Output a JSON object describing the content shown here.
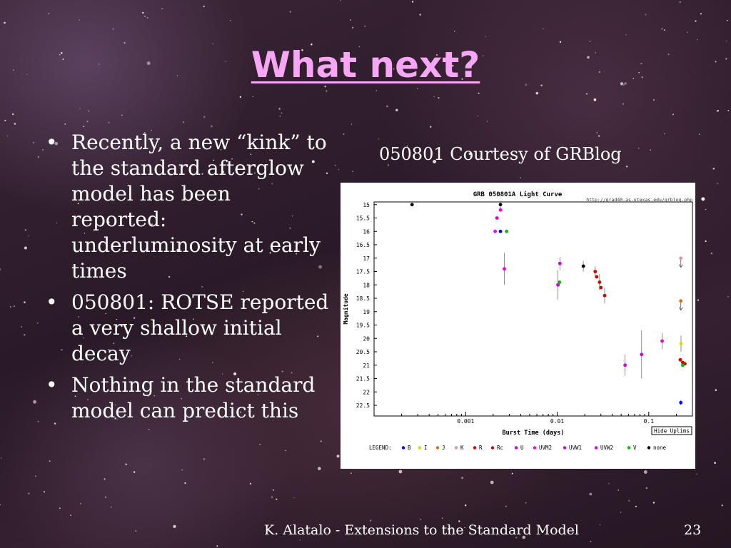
{
  "slide": {
    "title": "What next?",
    "bullets": [
      "Recently, a new “kink” to the standard afterglow model has been reported: underluminosity at early times",
      "050801: ROTSE reported a very shallow initial decay",
      "Nothing in the standard model can predict this"
    ],
    "caption": "050801 Courtesy of GRBlog",
    "footer": "K. Alatalo - Extensions to the Standard Model",
    "page_number": "23"
  },
  "chart_data": {
    "type": "scatter",
    "title": "GRB 050801A Light Curve",
    "source_url": "http://grad40.as.utexas.edu/grblog.php",
    "xlabel": "Burst Time (days)",
    "ylabel": "Magnitude",
    "xscale": "log",
    "xlim": [
      0.0001,
      0.3
    ],
    "ylim": [
      15,
      22.5
    ],
    "y_inverted": true,
    "x_ticks": [
      {
        "value": 0.001,
        "label": "0.001"
      },
      {
        "value": 0.01,
        "label": "0.01"
      },
      {
        "value": 0.1,
        "label": "0.1"
      }
    ],
    "y_ticks": [
      "15",
      "15.5",
      "16",
      "16.5",
      "17",
      "17.5",
      "18",
      "18.5",
      "19",
      "19.5",
      "20",
      "20.5",
      "21",
      "21.5",
      "22",
      "22.5"
    ],
    "button_label": "Hide Uplims",
    "legend_title": "LEGEND:",
    "series": [
      {
        "name": "B",
        "color": "#0000ff",
        "marker": "star",
        "points": [
          {
            "x": 0.0024,
            "y": 16.0
          },
          {
            "x": 0.0102,
            "y": 18.0
          },
          {
            "x": 0.224,
            "y": 22.4
          }
        ]
      },
      {
        "name": "I",
        "color": "#d8d800",
        "marker": "star",
        "points": [
          {
            "x": 0.225,
            "y": 20.2
          }
        ]
      },
      {
        "name": "J",
        "color": "#c07820",
        "marker": "star",
        "points": [
          {
            "x": 0.224,
            "y": 18.6,
            "upper_limit": true
          }
        ]
      },
      {
        "name": "K",
        "color": "#d89898",
        "marker": "star",
        "points": [
          {
            "x": 0.224,
            "y": 17.0,
            "upper_limit": true
          }
        ]
      },
      {
        "name": "R",
        "color": "#cc0000",
        "marker": "star",
        "points": [
          {
            "x": 0.026,
            "y": 17.5
          },
          {
            "x": 0.027,
            "y": 17.7
          },
          {
            "x": 0.029,
            "y": 17.9
          },
          {
            "x": 0.03,
            "y": 18.1
          },
          {
            "x": 0.033,
            "y": 18.4
          },
          {
            "x": 0.221,
            "y": 20.8
          },
          {
            "x": 0.235,
            "y": 20.9
          },
          {
            "x": 0.248,
            "y": 20.95
          }
        ]
      },
      {
        "name": "Rc",
        "color": "#cc0000",
        "marker": "star",
        "points": []
      },
      {
        "name": "U",
        "color": "#d000d0",
        "marker": "star",
        "points": [
          {
            "x": 0.0102,
            "y": 18.0
          }
        ]
      },
      {
        "name": "UVM2",
        "color": "#ee00ee",
        "marker": "star",
        "points": [
          {
            "x": 0.0021,
            "y": 16.0
          },
          {
            "x": 0.0024,
            "y": 15.2
          }
        ]
      },
      {
        "name": "UVW1",
        "color": "#d000d0",
        "marker": "star",
        "points": [
          {
            "x": 0.0022,
            "y": 15.5
          },
          {
            "x": 0.0107,
            "y": 17.2
          },
          {
            "x": 0.0551,
            "y": 21.0
          },
          {
            "x": 0.0835,
            "y": 20.6
          }
        ]
      },
      {
        "name": "UVW2",
        "color": "#dd00dd",
        "marker": "star",
        "points": [
          {
            "x": 0.00265,
            "y": 17.4
          },
          {
            "x": 0.14,
            "y": 20.1
          }
        ]
      },
      {
        "name": "V",
        "color": "#00bb00",
        "marker": "star",
        "points": [
          {
            "x": 0.0028,
            "y": 16.0
          },
          {
            "x": 0.0106,
            "y": 17.9
          },
          {
            "x": 0.235,
            "y": 21.0
          }
        ]
      },
      {
        "name": "none",
        "color": "#000000",
        "marker": "dot",
        "points": [
          {
            "x": 0.00026,
            "y": 15.0
          },
          {
            "x": 0.0024,
            "y": 15.0
          },
          {
            "x": 0.0193,
            "y": 17.3
          }
        ]
      }
    ]
  }
}
